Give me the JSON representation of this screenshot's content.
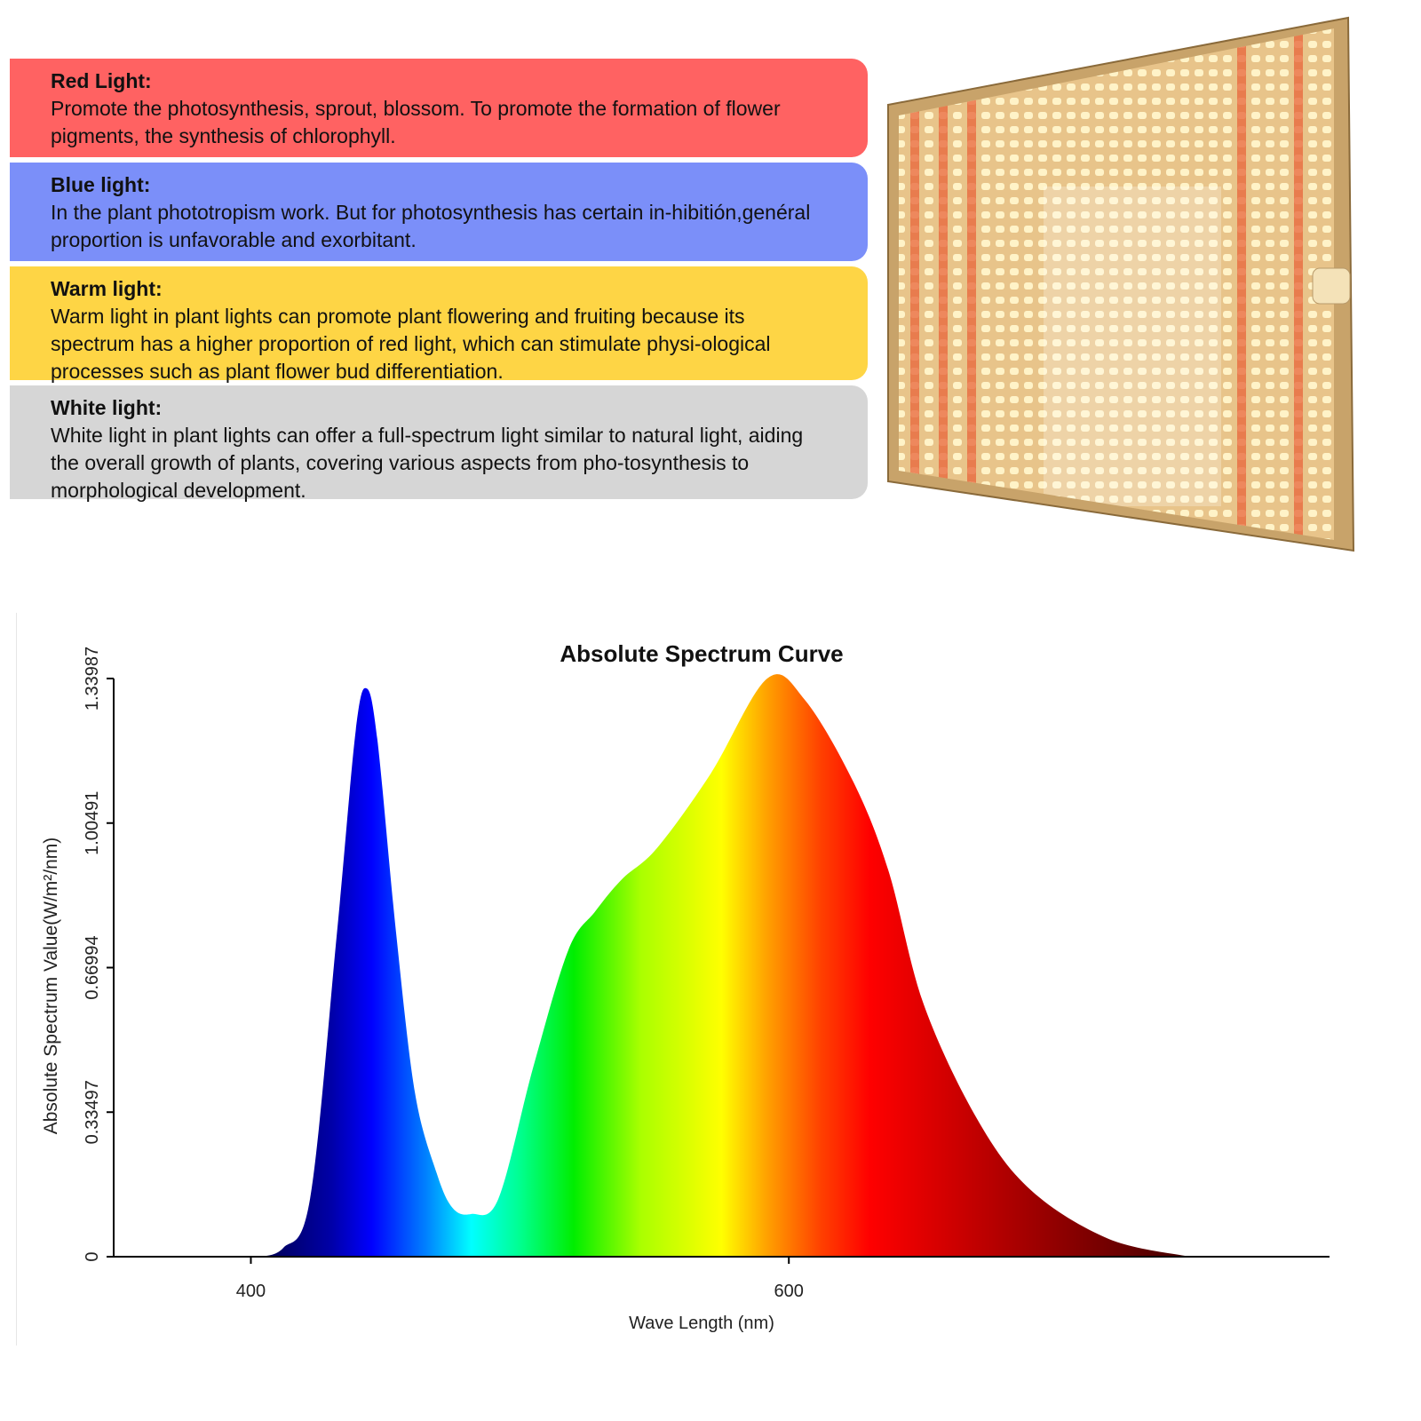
{
  "cards": [
    {
      "title": "Red Light:",
      "text": "Promote the photosynthesis, sprout, blossom. To promote the formation of flower pigments, the synthesis of chlorophyll.",
      "color": "#ff6262"
    },
    {
      "title": "Blue light:",
      "text": "In the plant phototropism work. But for photosynthesis has certain in-hibitión,genéral proportion is unfavorable and exorbitant.",
      "color": "#7b8ff9"
    },
    {
      "title": "Warm light:",
      "text": "Warm light in plant lights can promote plant flowering and fruiting because its spectrum has a higher proportion of red light, which can stimulate physi-ological processes such as plant flower bud differentiation.",
      "color": "#fed545"
    },
    {
      "title": "White light:",
      "text": "White light in plant lights can offer a full-spectrum light similar to natural light, aiding the overall growth of plants, covering various aspects from pho-tosynthesis to morphological development.",
      "color": "#d6d6d6"
    }
  ],
  "chart_data": {
    "type": "area",
    "title": "Absolute Spectrum Curve",
    "xlabel": "Wave Length (nm)",
    "ylabel": "Absolute Spectrum Value(W/m²/nm)",
    "xlim": [
      349,
      801
    ],
    "ylim": [
      0,
      1.33987
    ],
    "xticks": [
      400,
      600
    ],
    "yticks": [
      "0",
      "0.33497",
      "0.66994",
      "1.00491",
      "1.33987"
    ],
    "ytick_values": [
      0,
      0.33497,
      0.66994,
      1.00491,
      1.33987
    ],
    "grid": false,
    "x": [
      404,
      412,
      422,
      432,
      439,
      443,
      447,
      454,
      461,
      469,
      475,
      482,
      492,
      505,
      518,
      528,
      538,
      551,
      571,
      592,
      606,
      624,
      637,
      650,
      670,
      690,
      719,
      749
    ],
    "y": [
      0,
      0.02,
      0.134,
      0.75,
      1.22,
      1.317,
      1.2,
      0.75,
      0.38,
      0.195,
      0.113,
      0.099,
      0.134,
      0.44,
      0.71,
      0.8,
      0.875,
      0.947,
      1.12,
      1.34,
      1.29,
      1.1,
      0.895,
      0.587,
      0.319,
      0.154,
      0.041,
      0
    ]
  }
}
